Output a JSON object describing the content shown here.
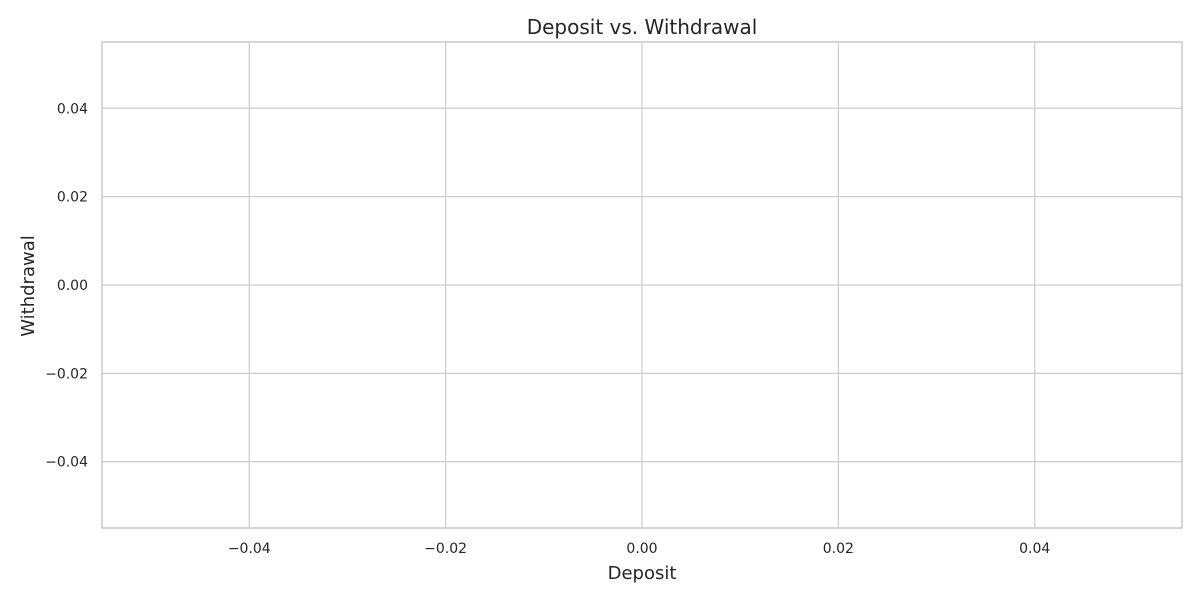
{
  "chart_data": {
    "type": "scatter",
    "title": "Deposit vs. Withdrawal",
    "xlabel": "Deposit",
    "ylabel": "Withdrawal",
    "xlim": [
      -0.055,
      0.055
    ],
    "ylim": [
      -0.055,
      0.055
    ],
    "x_ticks": [
      -0.04,
      -0.02,
      0.0,
      0.02,
      0.04
    ],
    "y_ticks": [
      -0.04,
      -0.02,
      0.0,
      0.02,
      0.04
    ],
    "x_tick_labels": [
      "−0.04",
      "−0.02",
      "0.00",
      "0.02",
      "0.04"
    ],
    "y_tick_labels": [
      "−0.04",
      "−0.02",
      "0.00",
      "0.02",
      "0.04"
    ],
    "grid": true,
    "points": []
  }
}
